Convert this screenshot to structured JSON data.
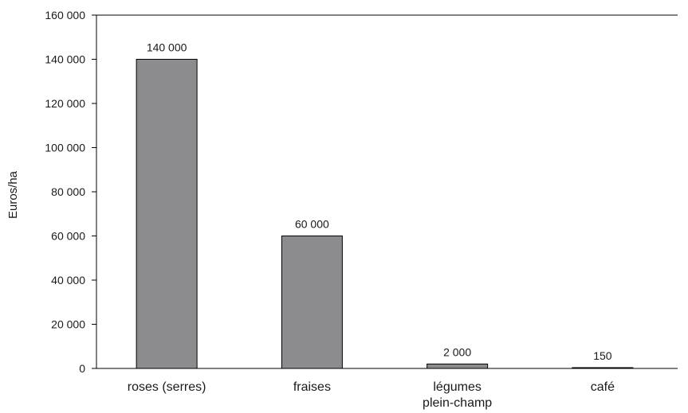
{
  "chart_data": {
    "type": "bar",
    "title": "",
    "xlabel": "",
    "ylabel": "Euros/ha",
    "categories": [
      "roses (serres)",
      "fraises",
      "légumes\nplein-champ",
      "café"
    ],
    "values": [
      140000,
      60000,
      2000,
      150
    ],
    "data_labels": [
      "140 000",
      "60 000",
      "2 000",
      "150"
    ],
    "ylim": [
      0,
      160000
    ],
    "yticks": [
      0,
      20000,
      40000,
      60000,
      80000,
      100000,
      120000,
      140000,
      160000
    ],
    "ytick_labels": [
      "0",
      "20 000",
      "40 000",
      "60 000",
      "80 000",
      "100 000",
      "120 000",
      "140 000",
      "160 000"
    ],
    "grid": false,
    "legend": "none",
    "bar_color": "#8c8c8e",
    "bar_edge_color": "#000000"
  }
}
